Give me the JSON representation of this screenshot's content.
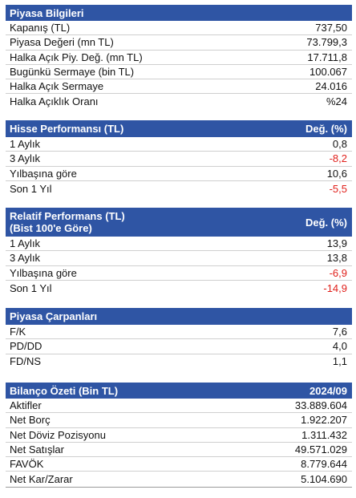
{
  "piyasa": {
    "title": "Piyasa Bilgileri",
    "rows": [
      {
        "label": "Kapanış (TL)",
        "value": "737,50"
      },
      {
        "label": "Piyasa Değeri (mn TL)",
        "value": "73.799,3"
      },
      {
        "label": "Halka Açık Piy. Değ. (mn TL)",
        "value": "17.711,8"
      },
      {
        "label": "Bugünkü Sermaye (bin TL)",
        "value": "100.067"
      },
      {
        "label": "Halka Açık Sermaye",
        "value": "24.016"
      },
      {
        "label": "Halka Açıklık Oranı",
        "value": "%24"
      }
    ]
  },
  "hisse": {
    "title": "Hisse Performansı (TL)",
    "col": "Değ. (%)",
    "rows": [
      {
        "label": "1 Aylık",
        "value": "0,8"
      },
      {
        "label": "3 Aylık",
        "value": "-8,2"
      },
      {
        "label": "Yılbaşına göre",
        "value": "10,6"
      },
      {
        "label": "Son 1 Yıl",
        "value": "-5,5"
      }
    ]
  },
  "relatif": {
    "title_line1": "Relatif Performans (TL)",
    "title_line2": "(Bist 100'e Göre)",
    "col": "Değ. (%)",
    "rows": [
      {
        "label": "1 Aylık",
        "value": "13,9"
      },
      {
        "label": "3 Aylık",
        "value": "13,8"
      },
      {
        "label": "Yılbaşına göre",
        "value": "-6,9"
      },
      {
        "label": "Son 1 Yıl",
        "value": "-14,9"
      }
    ]
  },
  "carpan": {
    "title": "Piyasa Çarpanları",
    "rows": [
      {
        "label": "F/K",
        "value": "7,6"
      },
      {
        "label": "PD/DD",
        "value": "4,0"
      },
      {
        "label": "FD/NS",
        "value": "1,1"
      }
    ]
  },
  "bilanco": {
    "title": "Bilanço Özeti (Bin TL)",
    "col": "2024/09",
    "rows": [
      {
        "label": "Aktifler",
        "value": "33.889.604"
      },
      {
        "label": "Net Borç",
        "value": "1.922.207"
      },
      {
        "label": "Net Döviz Pozisyonu",
        "value": "1.311.432"
      },
      {
        "label": "Net Satışlar",
        "value": "49.571.029"
      },
      {
        "label": "FAVÖK",
        "value": "8.779.644"
      },
      {
        "label": "Net Kar/Zarar",
        "value": "5.104.690"
      }
    ]
  },
  "colors": {
    "header_bg": "#2f55a4",
    "negative": "#e0201b"
  }
}
